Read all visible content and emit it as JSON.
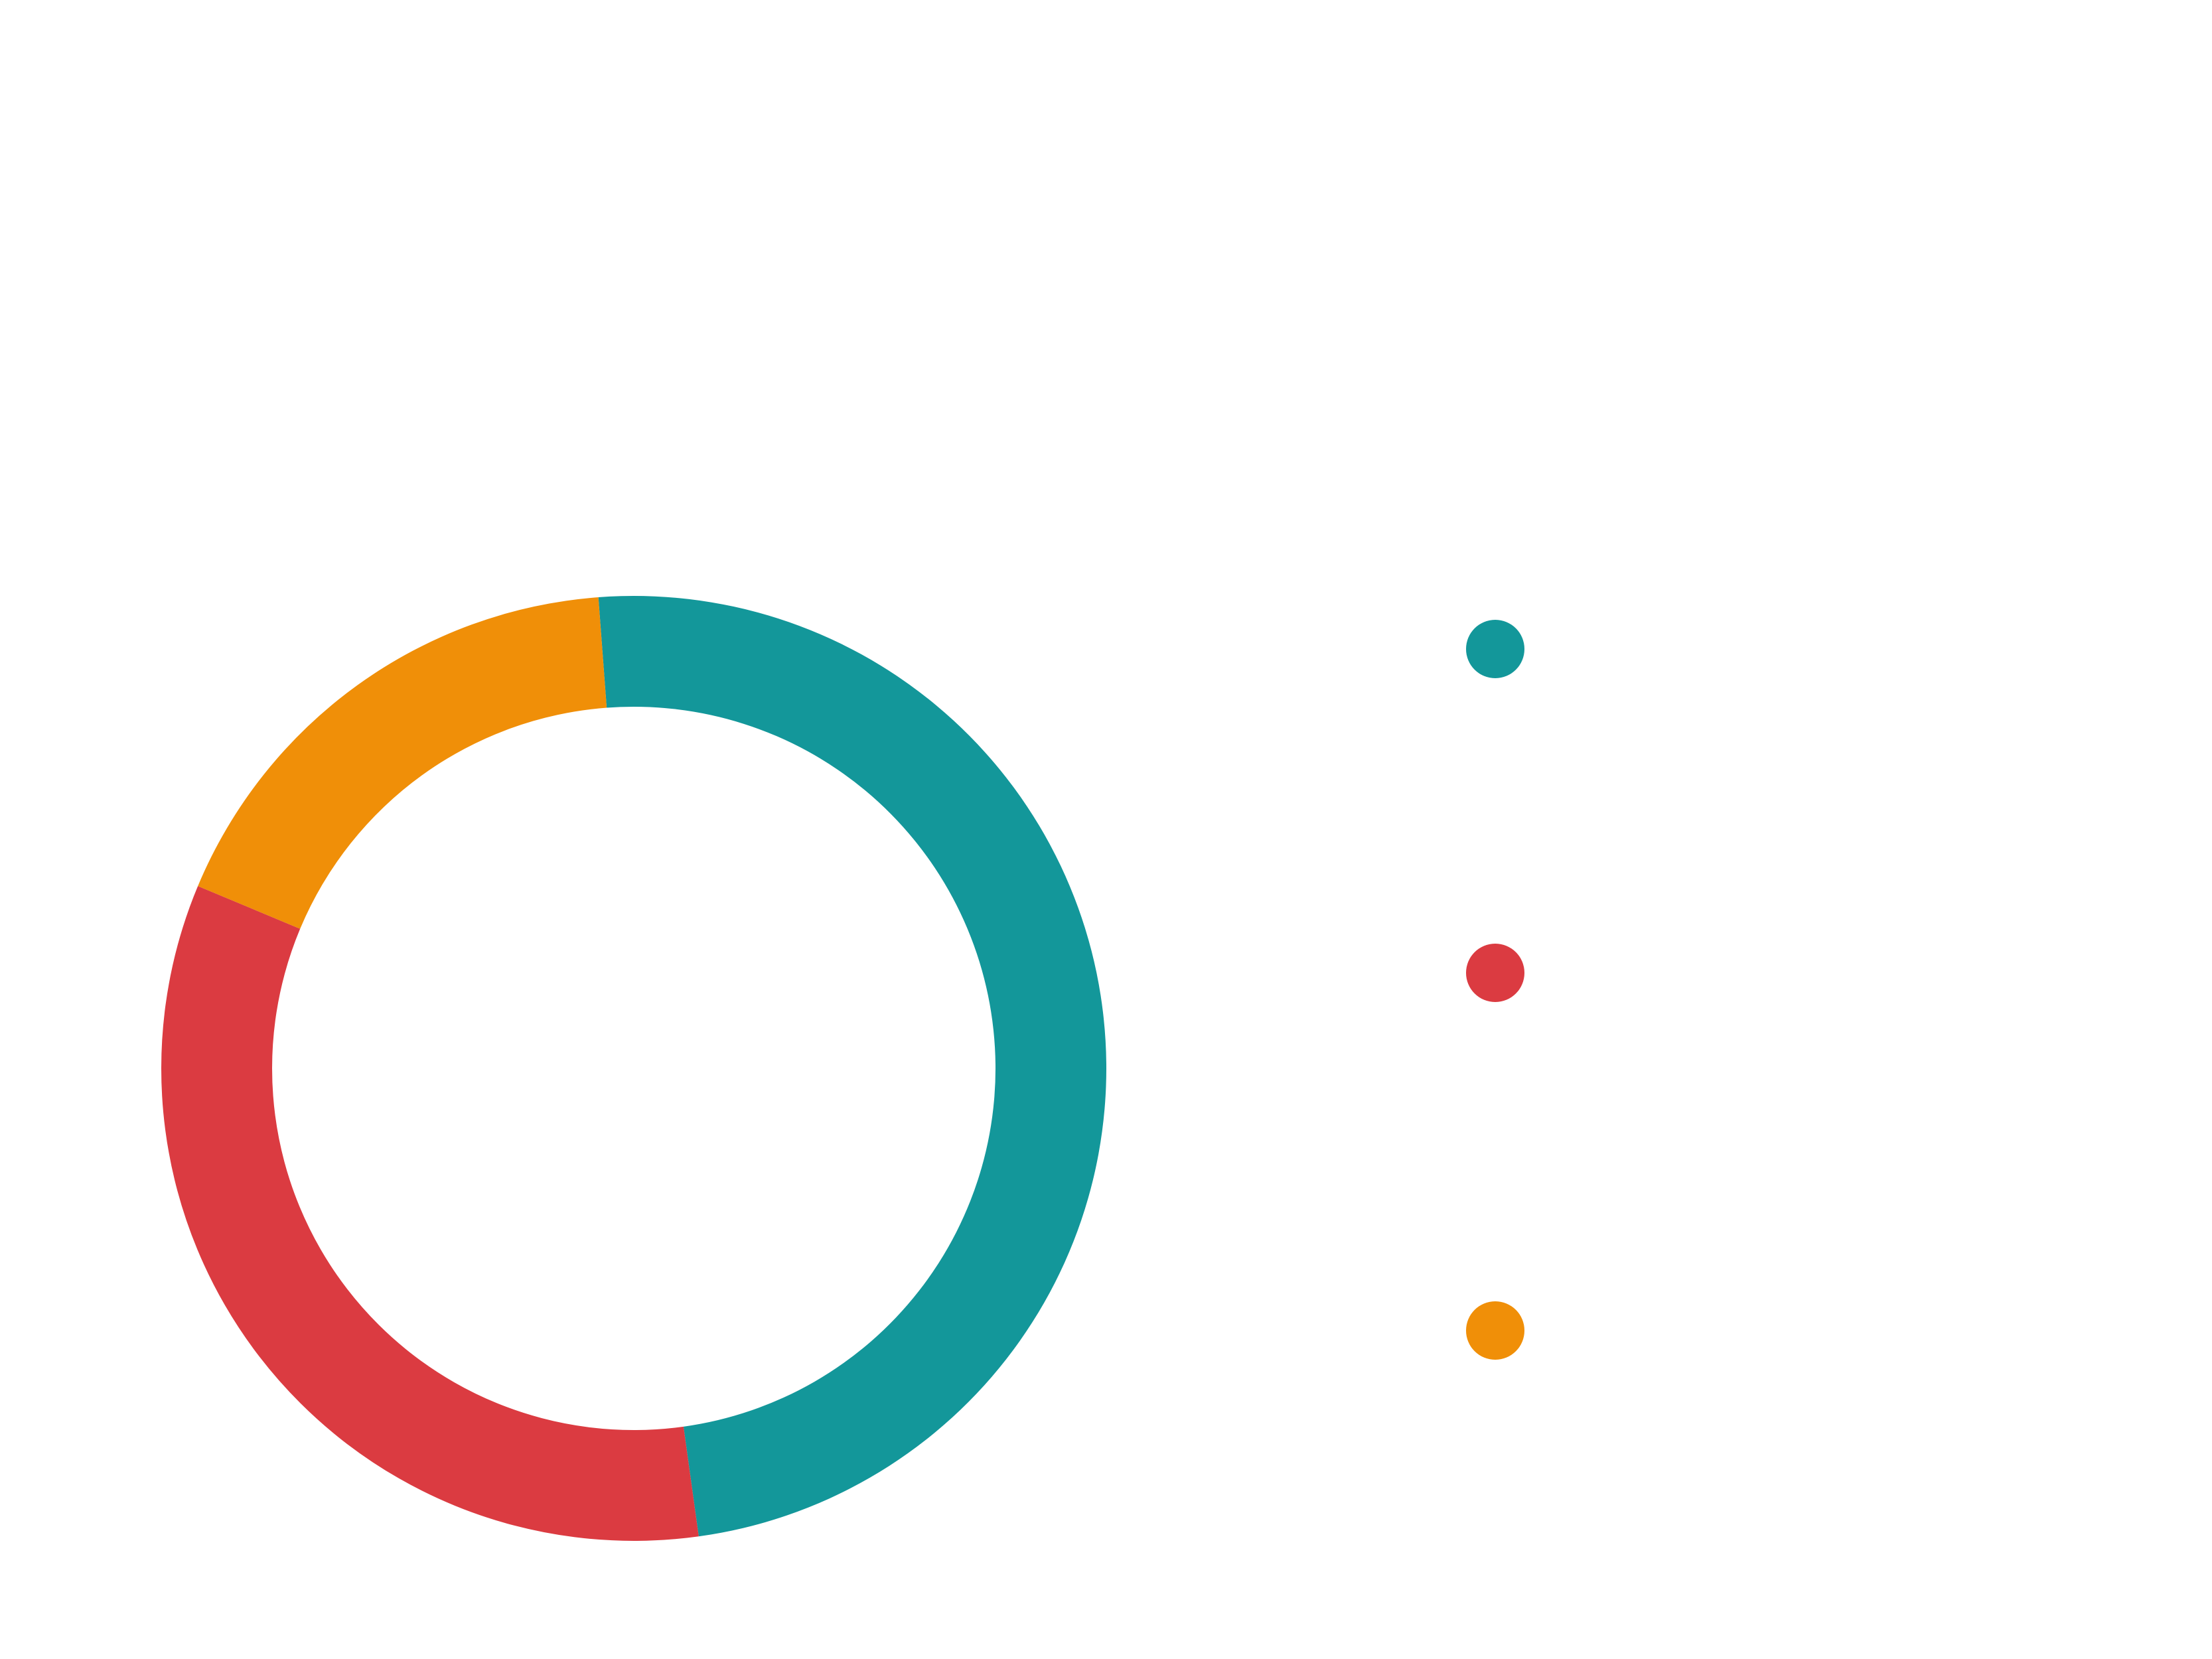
{
  "chart_data": {
    "type": "pie",
    "variant": "donut",
    "start_angle_deg": -4.3,
    "direction": "clockwise",
    "legend_position": "right",
    "slices": [
      {
        "value": 49.0,
        "color": "#13979a",
        "marker": "teal-dot"
      },
      {
        "value": 33.5,
        "color": "#db3b41",
        "marker": "red-dot"
      },
      {
        "value": 17.5,
        "color": "#f08f08",
        "marker": "orange-dot"
      }
    ]
  }
}
